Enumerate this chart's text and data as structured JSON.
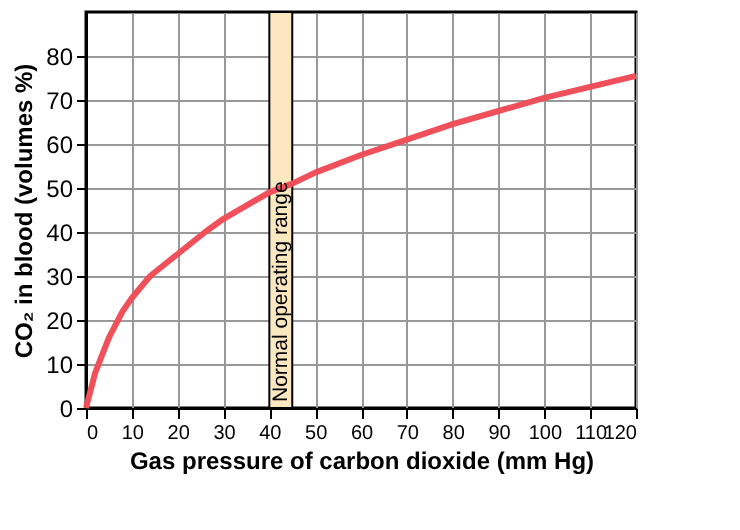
{
  "chart_data": {
    "type": "line",
    "xlabel": "Gas pressure of carbon dioxide (mm Hg)",
    "ylabel": "CO₂ in blood (volumes %)",
    "x": [
      0,
      2,
      5,
      8,
      10,
      14,
      20,
      26,
      30,
      40,
      45,
      50,
      60,
      70,
      80,
      90,
      100,
      110,
      120
    ],
    "series": [
      {
        "color": "#f0505a",
        "values": [
          0,
          8,
          16,
          22,
          25,
          30,
          35,
          40,
          43,
          49,
          51,
          53.5,
          57.5,
          61,
          64.5,
          67.5,
          70.5,
          73,
          75.5
        ]
      }
    ],
    "xlim": [
      0,
      120
    ],
    "xticks": [
      0,
      10,
      20,
      30,
      40,
      50,
      60,
      70,
      80,
      90,
      100,
      110,
      120
    ],
    "ylim": [
      0,
      90
    ],
    "yticks": [
      0,
      10,
      20,
      30,
      40,
      50,
      60,
      70,
      80
    ],
    "bands": [
      {
        "axis": "x",
        "from": 40,
        "to": 45,
        "label": "Normal operating range",
        "color": "#fce8c0"
      }
    ],
    "grid": true,
    "line_style": "solid",
    "marker": "none"
  }
}
